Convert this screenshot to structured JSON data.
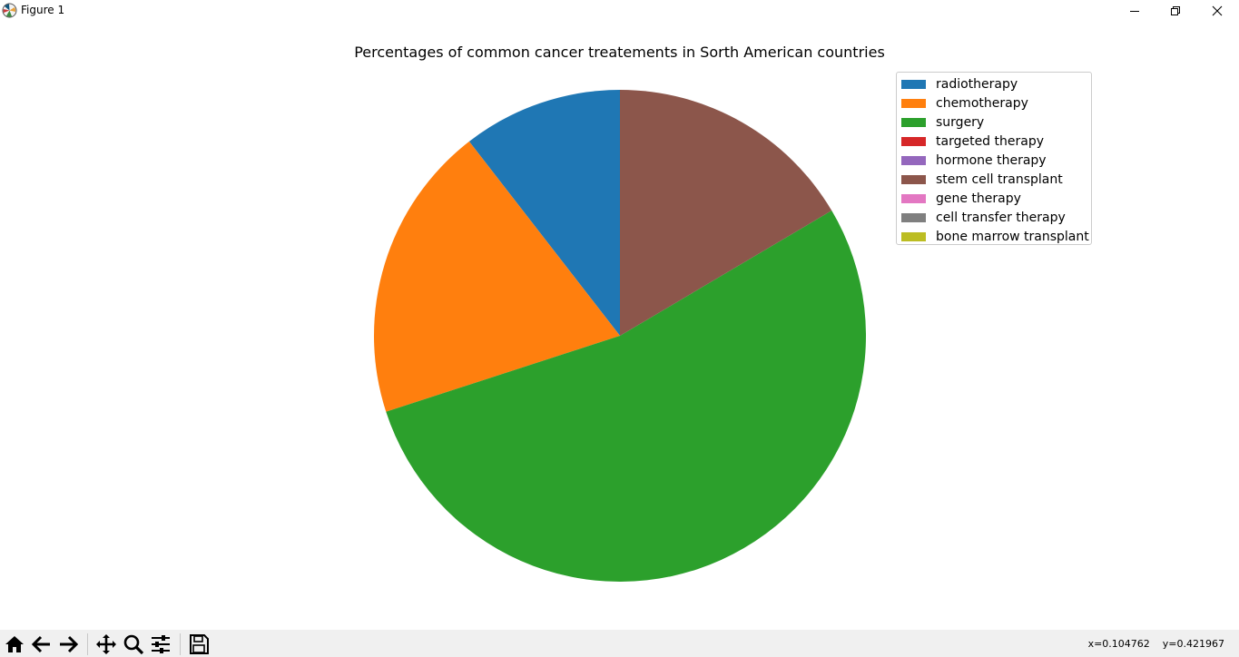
{
  "window": {
    "title": "Figure 1",
    "icon": "matplotlib-logo-icon"
  },
  "window_controls": [
    "minimize-icon",
    "restore-icon",
    "close-icon"
  ],
  "chart_data": {
    "type": "pie",
    "title": "Percentages of common cancer treatements in Sorth American countries",
    "start_angle_deg": 90,
    "direction": "counterclockwise",
    "categories": [
      "radiotherapy",
      "chemotherapy",
      "surgery",
      "targeted therapy",
      "hormone therapy",
      "stem cell transplant",
      "gene therapy",
      "cell transfer therapy",
      "bone marrow transplant"
    ],
    "values": [
      10.5,
      19.5,
      53.5,
      0,
      0,
      16.5,
      0,
      0,
      0
    ],
    "colors": [
      "#1f77b4",
      "#ff7f0e",
      "#2ca02c",
      "#d62728",
      "#9467bd",
      "#8c564b",
      "#e377c2",
      "#7f7f7f",
      "#bcbd22"
    ],
    "legend_position": "top-right"
  },
  "toolbar": {
    "buttons": [
      "home-icon",
      "back-icon",
      "forward-icon",
      "pan-icon",
      "zoom-icon",
      "configure-subplots-icon",
      "save-icon"
    ],
    "coords_x": "x=0.104762",
    "coords_y": "y=0.421967"
  }
}
